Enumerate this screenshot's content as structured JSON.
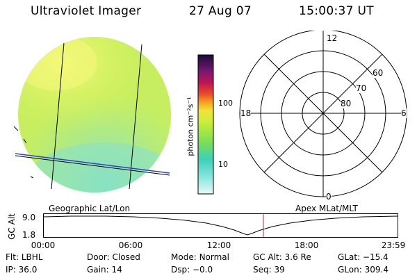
{
  "header": {
    "title": "Ultraviolet Imager",
    "date": "27 Aug 07",
    "time": "15:00:37 UT"
  },
  "colorbar": {
    "unit_label": "photon cm⁻²s⁻¹",
    "tick_labels": [
      "100",
      "10"
    ]
  },
  "labels": {
    "geographic": "Geographic Lat/Lon",
    "apex": "Apex MLat/MLT"
  },
  "polar_plot": {
    "mlt_labels": {
      "top": "12",
      "left": "18",
      "right": "6",
      "bottom": "0"
    },
    "lat_labels": [
      "60",
      "70",
      "80"
    ]
  },
  "altitude_plot": {
    "ylabel": "GC Alt",
    "y_ticks": [
      "9.0",
      "1.8"
    ],
    "x_ticks": [
      "00:00",
      "06:00",
      "12:00",
      "18:00",
      "23:59"
    ],
    "current_time_marker": "15:00"
  },
  "info": {
    "row1": [
      {
        "label": "Flt:",
        "value": "LBHL"
      },
      {
        "label": "Door:",
        "value": "Closed"
      },
      {
        "label": "Mode:",
        "value": "Normal"
      },
      {
        "label": "GC Alt:",
        "value": "3.6 Re"
      },
      {
        "label": "GLat:",
        "value": "−15.4"
      }
    ],
    "row2": [
      {
        "label": "IP:",
        "value": "36.0"
      },
      {
        "label": "Gain:",
        "value": "14"
      },
      {
        "label": "Dsp:",
        "value": "−0.0"
      },
      {
        "label": "Seq:",
        "value": "39"
      },
      {
        "label": "GLon:",
        "value": "309.4"
      }
    ]
  },
  "colors": {
    "imager_fill": "#d8f25a",
    "bright_region": "#f1f76b",
    "dim_region": "#7fe3cf",
    "limb_line": "#2f3fd0",
    "time_marker": "#cc2222"
  }
}
